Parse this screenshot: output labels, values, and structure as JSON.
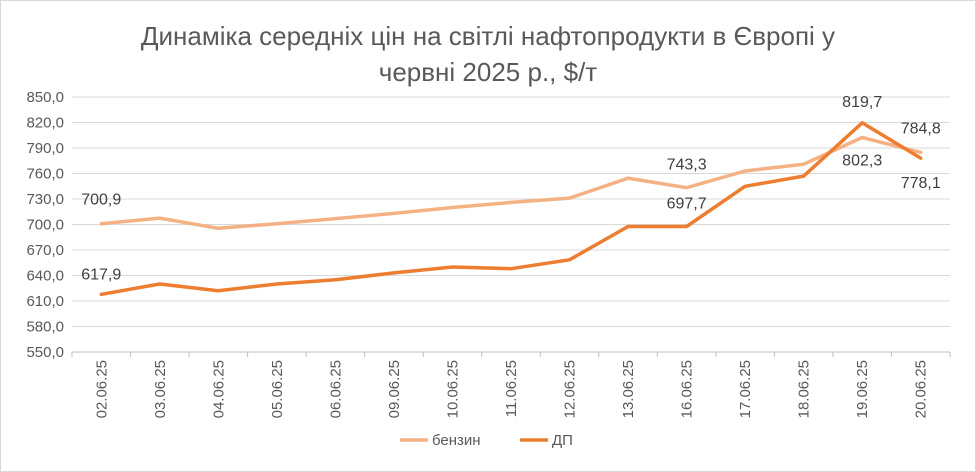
{
  "chart_data": {
    "type": "line",
    "title_line1": "Динаміка середніх цін на світлі нафтопродукти в Європі у",
    "title_line2": "червні 2025 р., $/т",
    "categories": [
      "02.06.25",
      "03.06.25",
      "04.06.25",
      "05.06.25",
      "06.06.25",
      "09.06.25",
      "10.06.25",
      "11.06.25",
      "12.06.25",
      "13.06.25",
      "16.06.25",
      "17.06.25",
      "18.06.25",
      "19.06.25",
      "20.06.25"
    ],
    "y_ticks": [
      "850,0",
      "820,0",
      "790,0",
      "760,0",
      "730,0",
      "700,0",
      "670,0",
      "640,0",
      "610,0",
      "580,0",
      "550,0"
    ],
    "ylim": [
      550,
      850
    ],
    "grid": true,
    "legend_position": "bottom",
    "series": [
      {
        "name": "бензин",
        "color": "#f4b183",
        "values": [
          700.9,
          707.5,
          695.5,
          701.0,
          707.0,
          713.0,
          720.0,
          726.0,
          731.0,
          754.5,
          743.3,
          763.0,
          771.0,
          802.3,
          784.8
        ]
      },
      {
        "name": "ДП",
        "color": "#ed7d31",
        "values": [
          617.9,
          630.0,
          622.0,
          630.0,
          635.0,
          643.0,
          650.0,
          648.0,
          658.5,
          697.7,
          697.7,
          745.0,
          757.0,
          819.7,
          778.1
        ]
      }
    ],
    "data_labels": [
      {
        "series": 0,
        "index": 0,
        "text": "700,9"
      },
      {
        "series": 1,
        "index": 0,
        "text": "617,9"
      },
      {
        "series": 0,
        "index": 10,
        "text": "743,3"
      },
      {
        "series": 1,
        "index": 10,
        "text": "697,7"
      },
      {
        "series": 1,
        "index": 13,
        "text": "819,7"
      },
      {
        "series": 0,
        "index": 13,
        "text": "802,3"
      },
      {
        "series": 0,
        "index": 14,
        "text": "784,8"
      },
      {
        "series": 1,
        "index": 14,
        "text": "778,1"
      }
    ]
  }
}
